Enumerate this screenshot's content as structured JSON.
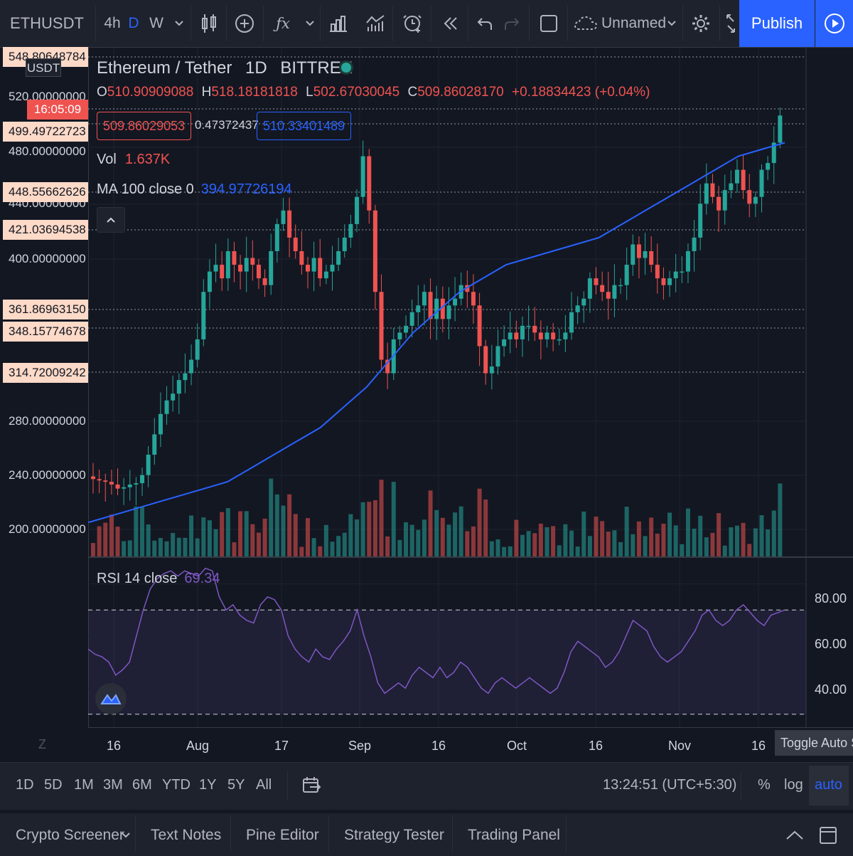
{
  "toolbar": {
    "symbol": "ETHUSDT",
    "intervals": [
      "4h",
      "D",
      "W"
    ],
    "active_interval": "D",
    "layout_name": "Unnamed",
    "publish_label": "Publish"
  },
  "legend": {
    "pair": "Ethereum / Tether",
    "interval": "1D",
    "exchange": "BITTREX",
    "o_label": "O",
    "o_value": "510.90909088",
    "h_label": "H",
    "h_value": "518.18181818",
    "l_label": "L",
    "l_value": "502.67030045",
    "c_label": "C",
    "c_value": "509.86028170",
    "change": "+0.18834423 (+0.04%)",
    "sell_price": "509.86029053",
    "spread": "0.47372437",
    "buy_price": "510.33401489",
    "vol_label": "Vol",
    "vol_value": "1.637K",
    "ma_label": "MA 100 close 0",
    "ma_value": "394.97726194"
  },
  "price_axis": {
    "currency": "USDT",
    "clock": "16:05:09",
    "top_label": "548.80648784",
    "tick_labels": [
      "520.00000000",
      "480.00000000",
      "440.00000000",
      "400.00000000",
      "280.00000000",
      "240.00000000",
      "200.00000000"
    ],
    "line_labels": [
      "499.49722723",
      "448.55662626",
      "421.03694538",
      "361.86963150",
      "348.15774678",
      "314.72009242"
    ]
  },
  "rsi": {
    "label": "RSI 14 close",
    "value": "69.34",
    "axis": [
      "80.00",
      "60.00",
      "40.00"
    ]
  },
  "time_axis": {
    "labels": [
      "16",
      "Aug",
      "17",
      "Sep",
      "16",
      "Oct",
      "16",
      "Nov",
      "16"
    ],
    "tooltip": "Toggle Auto Sc",
    "z_label": "Z"
  },
  "range_bar": {
    "ranges": [
      "1D",
      "5D",
      "1M",
      "3M",
      "6M",
      "YTD",
      "1Y",
      "5Y",
      "All"
    ],
    "time": "13:24:51 (UTC+5:30)",
    "percent": "%",
    "log": "log",
    "auto": "auto"
  },
  "bottom_panel": {
    "tabs": [
      "Crypto Screener",
      "Text Notes",
      "Pine Editor",
      "Strategy Tester",
      "Trading Panel"
    ]
  },
  "colors": {
    "up": "#26a69a",
    "down": "#ef5350",
    "ma": "#2962ff",
    "rsi": "#7e57c2",
    "accent": "#2962ff"
  },
  "chart_data": [
    {
      "type": "candlestick",
      "title": "Ethereum / Tether 1D BITTREX",
      "ylim": [
        185,
        560
      ],
      "x_labels": [
        "16",
        "Aug",
        "17",
        "Sep",
        "16",
        "Oct",
        "16",
        "Nov",
        "16"
      ],
      "closes": [
        242,
        241,
        240,
        238,
        235,
        236,
        238,
        239,
        245,
        260,
        275,
        290,
        300,
        305,
        315,
        320,
        330,
        345,
        380,
        395,
        400,
        390,
        410,
        400,
        395,
        405,
        400,
        390,
        385,
        410,
        430,
        440,
        420,
        410,
        400,
        395,
        405,
        390,
        395,
        400,
        410,
        420,
        430,
        450,
        480,
        440,
        380,
        330,
        320,
        345,
        350,
        355,
        365,
        370,
        380,
        360,
        375,
        360,
        370,
        375,
        385,
        380,
        370,
        340,
        320,
        325,
        340,
        345,
        350,
        345,
        355,
        355,
        350,
        345,
        350,
        345,
        345,
        350,
        365,
        370,
        375,
        390,
        385,
        380,
        375,
        385,
        385,
        400,
        415,
        405,
        410,
        400,
        390,
        385,
        390,
        395,
        395,
        410,
        420,
        445,
        460,
        450,
        440,
        455,
        460,
        470,
        455,
        445,
        450,
        470,
        475,
        490,
        510
      ],
      "ma100": [
        210,
        215,
        220,
        225,
        230,
        235,
        240,
        250,
        260,
        270,
        280,
        295,
        310,
        330,
        350,
        365,
        380,
        390,
        400,
        405,
        410,
        415,
        420,
        430,
        440,
        450,
        460,
        470,
        480,
        485,
        490
      ],
      "volume_note": "volume bars below candles"
    },
    {
      "type": "line",
      "title": "RSI 14 close",
      "ylim": [
        25,
        90
      ],
      "bands": [
        70,
        30
      ],
      "values": [
        55,
        53,
        52,
        50,
        45,
        47,
        50,
        60,
        70,
        78,
        82,
        84,
        85,
        83,
        85,
        84,
        83,
        86,
        85,
        75,
        70,
        72,
        68,
        66,
        65,
        72,
        75,
        74,
        70,
        60,
        55,
        52,
        50,
        55,
        52,
        51,
        55,
        58,
        62,
        70,
        60,
        52,
        42,
        38,
        40,
        42,
        40,
        45,
        48,
        46,
        44,
        48,
        44,
        46,
        50,
        48,
        44,
        40,
        38,
        42,
        44,
        42,
        40,
        42,
        44,
        42,
        40,
        38,
        40,
        46,
        54,
        58,
        56,
        54,
        52,
        48,
        50,
        54,
        60,
        66,
        64,
        62,
        56,
        52,
        50,
        52,
        54,
        58,
        62,
        68,
        70,
        66,
        64,
        66,
        70,
        72,
        69,
        66,
        64,
        68,
        69,
        70
      ]
    }
  ]
}
